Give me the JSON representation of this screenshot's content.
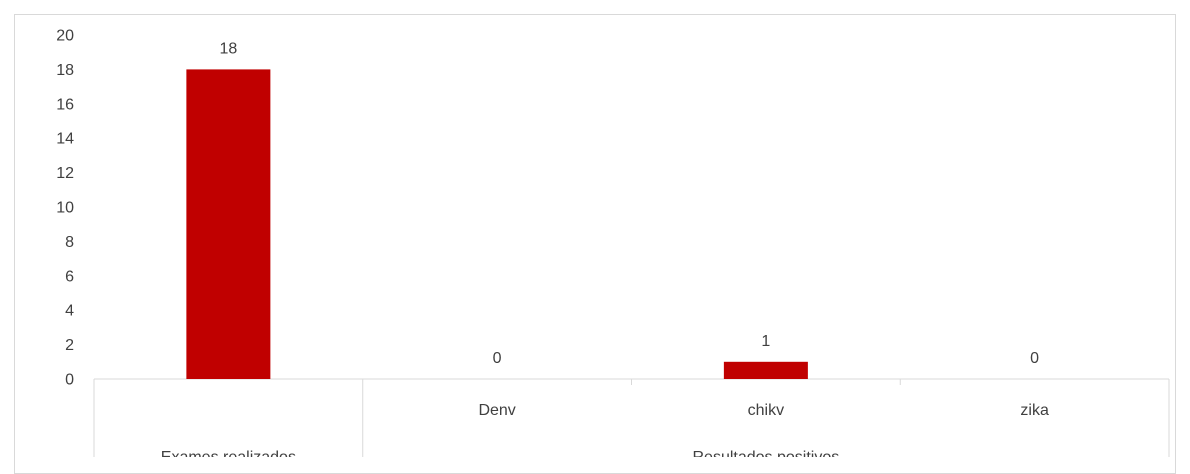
{
  "chart_data": {
    "type": "bar",
    "title": "",
    "xlabel": "",
    "ylabel": "",
    "ylim": [
      0,
      20
    ],
    "yticks": [
      0,
      2,
      4,
      6,
      8,
      10,
      12,
      14,
      16,
      18,
      20
    ],
    "grid": false,
    "legend": "none",
    "bar_color": "#c00000",
    "categories": [
      "",
      "Denv",
      "chikv",
      "zika"
    ],
    "groups": [
      {
        "label": "Exames realizados",
        "categories": [
          ""
        ]
      },
      {
        "label": "Resultados positivos",
        "categories": [
          "Denv",
          "chikv",
          "zika"
        ]
      }
    ],
    "values": [
      18,
      0,
      1,
      0
    ],
    "data_labels": [
      "18",
      "0",
      "1",
      "0"
    ]
  }
}
